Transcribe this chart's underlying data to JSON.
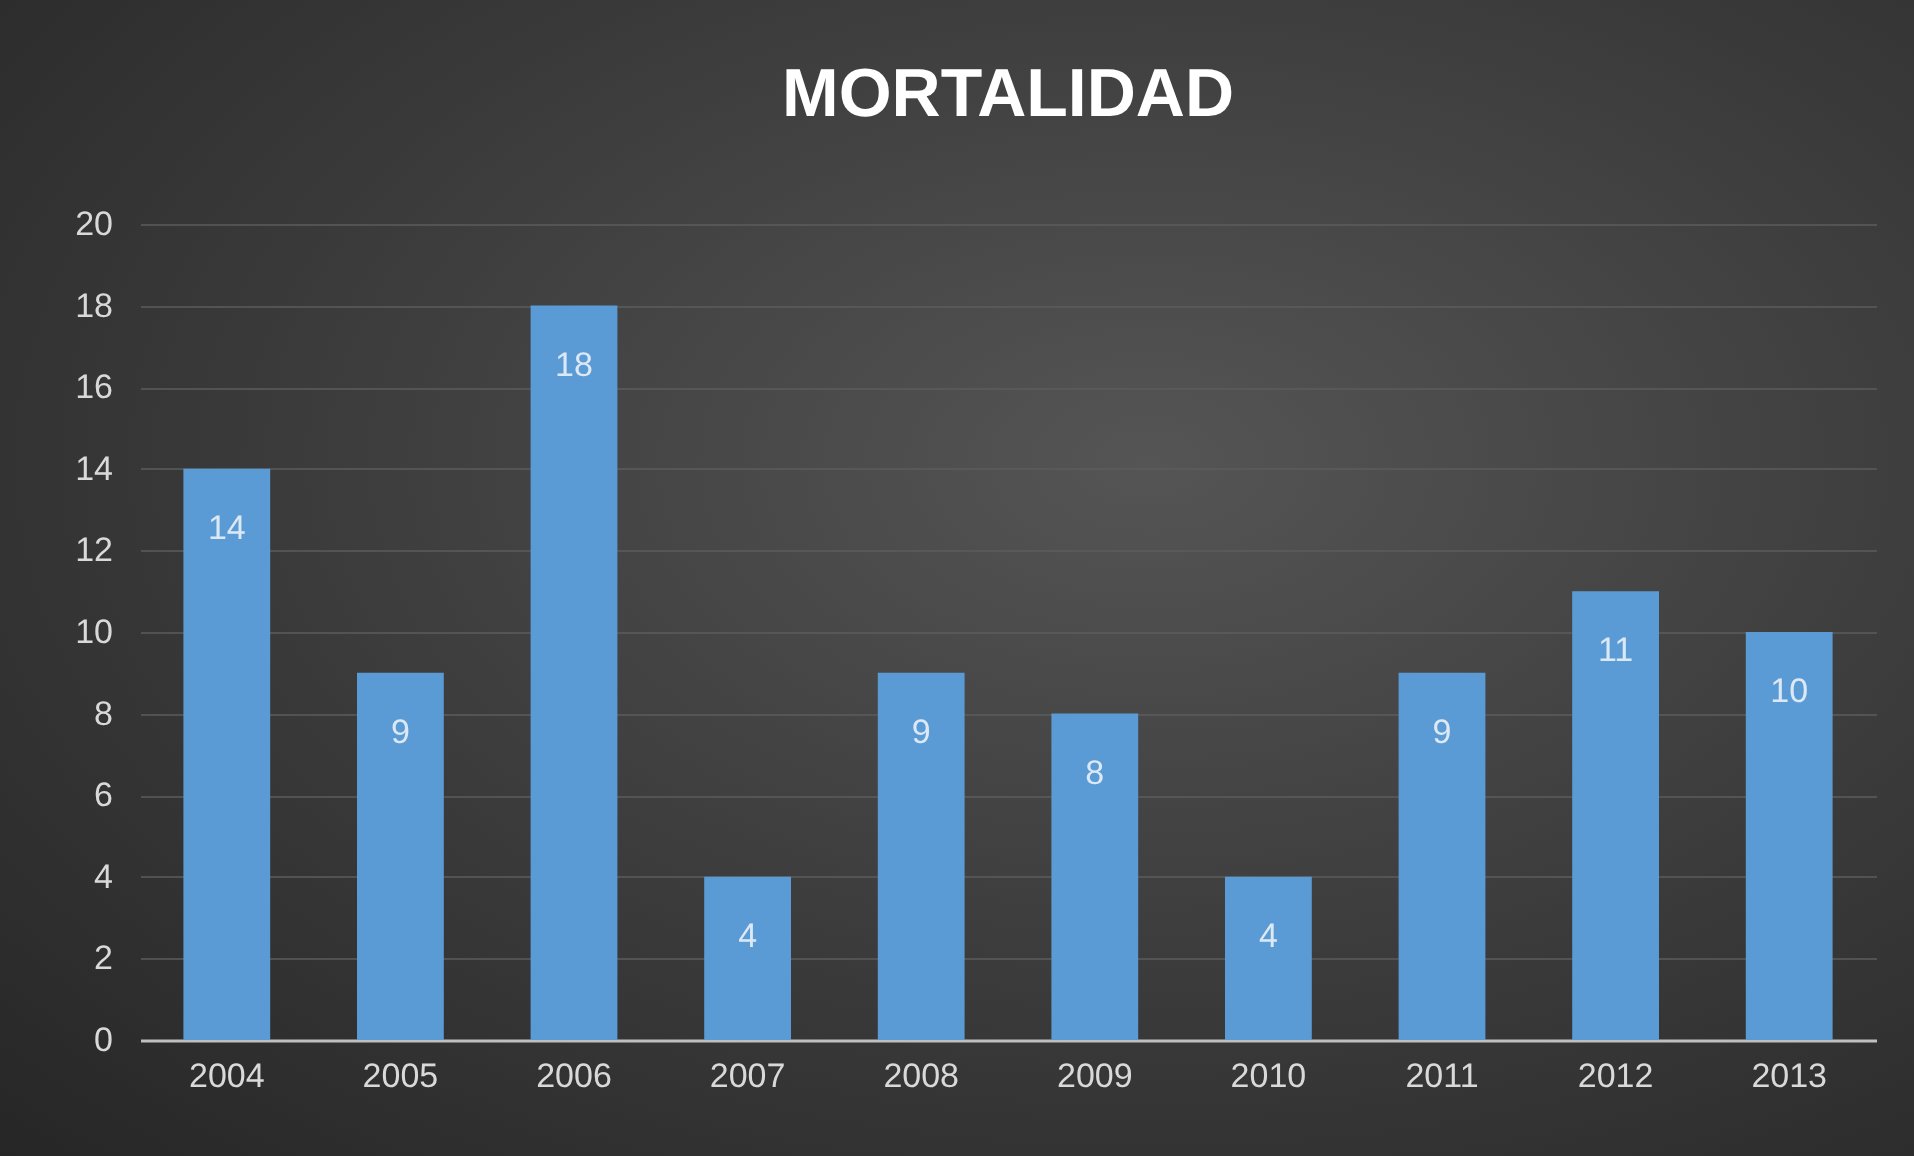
{
  "chart_data": {
    "type": "bar",
    "title": "MORTALIDAD",
    "categories": [
      "2004",
      "2005",
      "2006",
      "2007",
      "2008",
      "2009",
      "2010",
      "2011",
      "2012",
      "2013"
    ],
    "values": [
      14,
      9,
      18,
      4,
      9,
      8,
      4,
      9,
      11,
      10
    ],
    "color": "#5b9bd5",
    "ylim": [
      0,
      20
    ],
    "yticks": [
      0,
      2,
      4,
      6,
      8,
      10,
      12,
      14,
      16,
      18,
      20
    ],
    "grid": "y",
    "data_labels": true
  }
}
